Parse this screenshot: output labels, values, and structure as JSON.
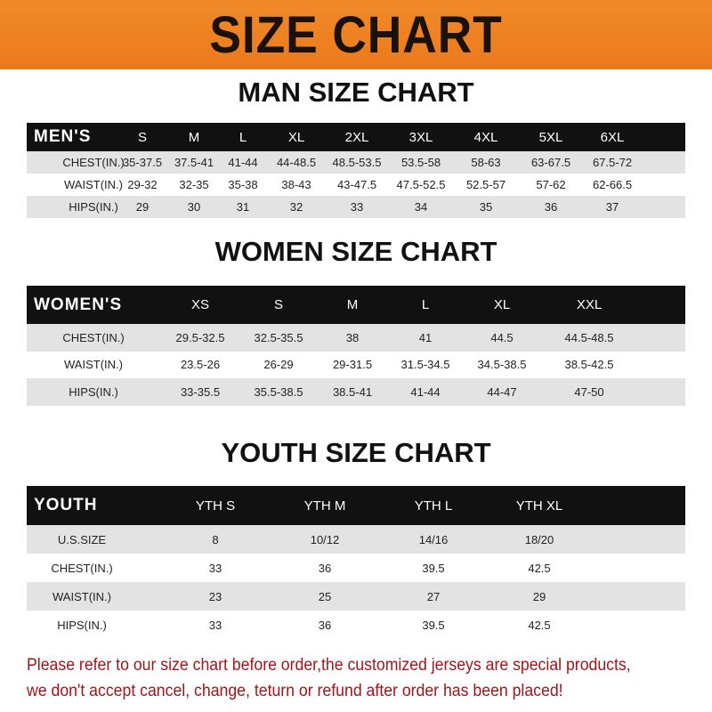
{
  "banner": "SIZE CHART",
  "colors": {
    "banner": "#ec7a1c",
    "header_row": "#111111",
    "stripe": "#e3e3e3",
    "note": "#a0161a"
  },
  "men": {
    "title": "MAN SIZE CHART",
    "header": [
      "MEN'S",
      "S",
      "M",
      "L",
      "XL",
      "2XL",
      "3XL",
      "4XL",
      "5XL",
      "6XL"
    ],
    "rows": [
      [
        "CHEST(IN.)",
        "35-37.5",
        "37.5-41",
        "41-44",
        "44-48.5",
        "48.5-53.5",
        "53.5-58",
        "58-63",
        "63-67.5",
        "67.5-72"
      ],
      [
        "WAIST(IN.)",
        "29-32",
        "32-35",
        "35-38",
        "38-43",
        "43-47.5",
        "47.5-52.5",
        "52.5-57",
        "57-62",
        "62-66.5"
      ],
      [
        "HIPS(IN.)",
        "29",
        "30",
        "31",
        "32",
        "33",
        "34",
        "35",
        "36",
        "37"
      ]
    ]
  },
  "women": {
    "title": "WOMEN SIZE CHART",
    "header": [
      "WOMEN'S",
      "XS",
      "S",
      "M",
      "L",
      "XL",
      "XXL"
    ],
    "rows": [
      [
        "CHEST(IN.)",
        "29.5-32.5",
        "32.5-35.5",
        "38",
        "41",
        "44.5",
        "44.5-48.5"
      ],
      [
        "WAIST(IN.)",
        "23.5-26",
        "26-29",
        "29-31.5",
        "31.5-34.5",
        "34.5-38.5",
        "38.5-42.5"
      ],
      [
        "HIPS(IN.)",
        "33-35.5",
        "35.5-38.5",
        "38.5-41",
        "41-44",
        "44-47",
        "47-50"
      ]
    ]
  },
  "youth": {
    "title": "YOUTH SIZE CHART",
    "header": [
      "YOUTH",
      "YTH S",
      "YTH M",
      "YTH L",
      "YTH XL"
    ],
    "rows": [
      [
        "U.S.SIZE",
        "8",
        "10/12",
        "14/16",
        "18/20"
      ],
      [
        "CHEST(IN.)",
        "33",
        "36",
        "39.5",
        "42.5"
      ],
      [
        "WAIST(IN.)",
        "23",
        "25",
        "27",
        "29"
      ],
      [
        "HIPS(IN.)",
        "33",
        "36",
        "39.5",
        "42.5"
      ]
    ]
  },
  "note": [
    "Please refer to our size chart before order,the customized jerseys are special products,",
    "we don't accept cancel, change, teturn or refund after order has been placed!"
  ]
}
